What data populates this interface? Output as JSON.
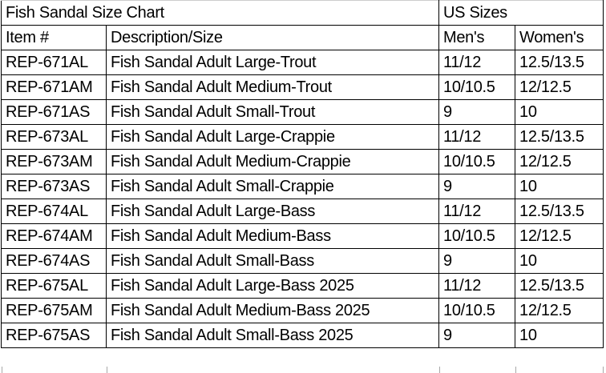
{
  "colors": {
    "background": "#ffffff",
    "text": "#000000",
    "border": "#000000",
    "gridline": "#a8a8a8"
  },
  "table": {
    "title": "Fish Sandal Size Chart",
    "us_sizes_header": "US Sizes",
    "columns": [
      "Item #",
      "Description/Size",
      "Men's",
      "Women's"
    ],
    "rows": [
      {
        "item": "REP-671AL",
        "description": "Fish Sandal Adult Large-Trout",
        "mens": "11/12",
        "mens_align": "left",
        "womens": "12.5/13.5",
        "womens_align": "left"
      },
      {
        "item": "REP-671AM",
        "description": "Fish Sandal Adult Medium-Trout",
        "mens": "10/10.5",
        "mens_align": "left",
        "womens": "12/12.5",
        "womens_align": "left"
      },
      {
        "item": "REP-671AS",
        "description": "Fish Sandal Adult Small-Trout",
        "mens": "9",
        "mens_align": "left",
        "womens": "10",
        "womens_align": "right"
      },
      {
        "item": "REP-673AL",
        "description": "Fish Sandal Adult Large-Crappie",
        "mens": "11/12",
        "mens_align": "left",
        "womens": "12.5/13.5",
        "womens_align": "left"
      },
      {
        "item": "REP-673AM",
        "description": "Fish Sandal Adult Medium-Crappie",
        "mens": "10/10.5",
        "mens_align": "left",
        "womens": "12/12.5",
        "womens_align": "left"
      },
      {
        "item": "REP-673AS",
        "description": "Fish Sandal Adult Small-Crappie",
        "mens": "9",
        "mens_align": "left",
        "womens": "10",
        "womens_align": "right"
      },
      {
        "item": "REP-674AL",
        "description": "Fish Sandal Adult Large-Bass",
        "mens": "11/12",
        "mens_align": "left",
        "womens": "12.5/13.5",
        "womens_align": "left"
      },
      {
        "item": "REP-674AM",
        "description": "Fish Sandal Adult Medium-Bass",
        "mens": "10/10.5",
        "mens_align": "left",
        "womens": "12/12.5",
        "womens_align": "left"
      },
      {
        "item": "REP-674AS",
        "description": "Fish Sandal Adult Small-Bass",
        "mens": "9",
        "mens_align": "left",
        "womens": "10",
        "womens_align": "right"
      },
      {
        "item": "REP-675AL",
        "description": "Fish Sandal Adult Large-Bass 2025",
        "mens": "11/12",
        "mens_align": "left",
        "womens": "12.5/13.5",
        "womens_align": "left"
      },
      {
        "item": "REP-675AM",
        "description": "Fish Sandal Adult Medium-Bass 2025",
        "mens": "10/10.5",
        "mens_align": "left",
        "womens": "12/12.5",
        "womens_align": "left"
      },
      {
        "item": "REP-675AS",
        "description": "Fish Sandal Adult Small-Bass 2025",
        "mens": "9",
        "mens_align": "left",
        "womens": "10",
        "womens_align": "right"
      }
    ]
  }
}
